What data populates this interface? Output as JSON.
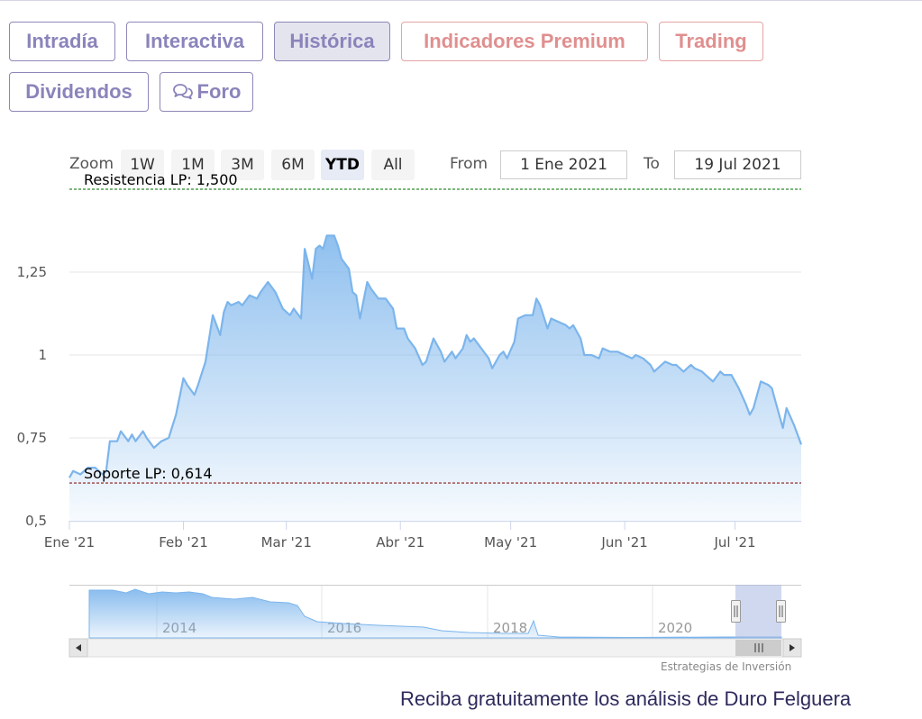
{
  "tabs": [
    {
      "label": "Intradía",
      "active": false,
      "premium": false
    },
    {
      "label": "Interactiva",
      "active": false,
      "premium": false
    },
    {
      "label": "Histórica",
      "active": true,
      "premium": false
    },
    {
      "label": "Indicadores Premium",
      "active": false,
      "premium": true
    },
    {
      "label": "Trading",
      "active": false,
      "premium": true
    },
    {
      "label": "Dividendos",
      "active": false,
      "premium": false
    },
    {
      "label": "Foro",
      "active": false,
      "premium": false,
      "icon": "chat-bubbles-icon"
    }
  ],
  "range_selector": {
    "zoom_label": "Zoom",
    "buttons": [
      "1W",
      "1M",
      "3M",
      "6M",
      "YTD",
      "All"
    ],
    "selected": "YTD",
    "from_label": "From",
    "from_value": "1 Ene 2021",
    "to_label": "To",
    "to_value": "19 Jul 2021"
  },
  "chart_data": {
    "type": "area",
    "y_axis": {
      "ticks": [
        0.5,
        0.75,
        1,
        1.25
      ],
      "tick_labels": [
        "0,5",
        "0,75",
        "1",
        "1,25"
      ],
      "range": [
        0.5,
        1.5
      ]
    },
    "x_axis": {
      "range": [
        "2021-01-01",
        "2021-07-19"
      ],
      "ticks": [
        "2021-01-01",
        "2021-02-01",
        "2021-03-01",
        "2021-04-01",
        "2021-05-01",
        "2021-06-01",
        "2021-07-01"
      ],
      "tick_labels": [
        "Ene '21",
        "Feb '21",
        "Mar '21",
        "Abr '21",
        "May '21",
        "Jun '21",
        "Jul '21"
      ]
    },
    "plot_lines": [
      {
        "label": "Resistencia LP: 1,500",
        "value": 1.5,
        "color": "#2e8b2e"
      },
      {
        "label": "Soporte LP: 0,614",
        "value": 0.614,
        "color": "#8b1a1a"
      }
    ],
    "series": [
      {
        "color": "#7cb5ec",
        "data": [
          [
            "2021-01-01",
            0.63
          ],
          [
            "2021-01-02",
            0.65
          ],
          [
            "2021-01-04",
            0.64
          ],
          [
            "2021-01-05",
            0.65
          ],
          [
            "2021-01-06",
            0.66
          ],
          [
            "2021-01-07",
            0.66
          ],
          [
            "2021-01-08",
            0.66
          ],
          [
            "2021-01-10",
            0.64
          ],
          [
            "2021-01-11",
            0.65
          ],
          [
            "2021-01-12",
            0.74
          ],
          [
            "2021-01-14",
            0.74
          ],
          [
            "2021-01-15",
            0.77
          ],
          [
            "2021-01-17",
            0.74
          ],
          [
            "2021-01-18",
            0.76
          ],
          [
            "2021-01-19",
            0.74
          ],
          [
            "2021-01-21",
            0.77
          ],
          [
            "2021-01-22",
            0.75
          ],
          [
            "2021-01-24",
            0.72
          ],
          [
            "2021-01-26",
            0.74
          ],
          [
            "2021-01-28",
            0.75
          ],
          [
            "2021-01-30",
            0.82
          ],
          [
            "2021-02-01",
            0.93
          ],
          [
            "2021-02-02",
            0.91
          ],
          [
            "2021-02-04",
            0.88
          ],
          [
            "2021-02-05",
            0.91
          ],
          [
            "2021-02-07",
            0.98
          ],
          [
            "2021-02-09",
            1.12
          ],
          [
            "2021-02-10",
            1.09
          ],
          [
            "2021-02-11",
            1.06
          ],
          [
            "2021-02-12",
            1.13
          ],
          [
            "2021-02-13",
            1.16
          ],
          [
            "2021-02-14",
            1.15
          ],
          [
            "2021-02-16",
            1.16
          ],
          [
            "2021-02-17",
            1.15
          ],
          [
            "2021-02-19",
            1.18
          ],
          [
            "2021-02-21",
            1.17
          ],
          [
            "2021-02-22",
            1.19
          ],
          [
            "2021-02-24",
            1.22
          ],
          [
            "2021-02-26",
            1.19
          ],
          [
            "2021-02-28",
            1.14
          ],
          [
            "2021-03-01",
            1.13
          ],
          [
            "2021-03-02",
            1.12
          ],
          [
            "2021-03-03",
            1.14
          ],
          [
            "2021-03-05",
            1.11
          ],
          [
            "2021-03-06",
            1.32
          ],
          [
            "2021-03-08",
            1.23
          ],
          [
            "2021-03-09",
            1.32
          ],
          [
            "2021-03-10",
            1.33
          ],
          [
            "2021-03-11",
            1.32
          ],
          [
            "2021-03-12",
            1.36
          ],
          [
            "2021-03-14",
            1.36
          ],
          [
            "2021-03-15",
            1.33
          ],
          [
            "2021-03-16",
            1.29
          ],
          [
            "2021-03-18",
            1.26
          ],
          [
            "2021-03-19",
            1.19
          ],
          [
            "2021-03-20",
            1.18
          ],
          [
            "2021-03-21",
            1.11
          ],
          [
            "2021-03-23",
            1.22
          ],
          [
            "2021-03-24",
            1.2
          ],
          [
            "2021-03-26",
            1.17
          ],
          [
            "2021-03-28",
            1.17
          ],
          [
            "2021-03-30",
            1.14
          ],
          [
            "2021-03-31",
            1.08
          ],
          [
            "2021-04-02",
            1.08
          ],
          [
            "2021-04-03",
            1.05
          ],
          [
            "2021-04-05",
            1.02
          ],
          [
            "2021-04-07",
            0.97
          ],
          [
            "2021-04-08",
            0.98
          ],
          [
            "2021-04-10",
            1.05
          ],
          [
            "2021-04-12",
            1.01
          ],
          [
            "2021-04-13",
            0.98
          ],
          [
            "2021-04-15",
            1.01
          ],
          [
            "2021-04-16",
            0.99
          ],
          [
            "2021-04-18",
            1.02
          ],
          [
            "2021-04-19",
            1.06
          ],
          [
            "2021-04-20",
            1.04
          ],
          [
            "2021-04-21",
            1.05
          ],
          [
            "2021-04-23",
            1.02
          ],
          [
            "2021-04-25",
            0.99
          ],
          [
            "2021-04-26",
            0.96
          ],
          [
            "2021-04-28",
            1
          ],
          [
            "2021-04-29",
            1.01
          ],
          [
            "2021-04-30",
            0.99
          ],
          [
            "2021-05-02",
            1.04
          ],
          [
            "2021-05-03",
            1.11
          ],
          [
            "2021-05-05",
            1.12
          ],
          [
            "2021-05-07",
            1.12
          ],
          [
            "2021-05-08",
            1.17
          ],
          [
            "2021-05-09",
            1.15
          ],
          [
            "2021-05-11",
            1.08
          ],
          [
            "2021-05-12",
            1.11
          ],
          [
            "2021-05-14",
            1.1
          ],
          [
            "2021-05-16",
            1.09
          ],
          [
            "2021-05-17",
            1.08
          ],
          [
            "2021-05-18",
            1.09
          ],
          [
            "2021-05-20",
            1.05
          ],
          [
            "2021-05-21",
            1
          ],
          [
            "2021-05-23",
            1
          ],
          [
            "2021-05-25",
            0.99
          ],
          [
            "2021-05-26",
            1.02
          ],
          [
            "2021-05-28",
            1.01
          ],
          [
            "2021-05-30",
            1.01
          ],
          [
            "2021-06-01",
            1
          ],
          [
            "2021-06-03",
            0.99
          ],
          [
            "2021-06-04",
            1
          ],
          [
            "2021-06-06",
            0.99
          ],
          [
            "2021-06-08",
            0.97
          ],
          [
            "2021-06-09",
            0.95
          ],
          [
            "2021-06-11",
            0.97
          ],
          [
            "2021-06-12",
            0.98
          ],
          [
            "2021-06-14",
            0.97
          ],
          [
            "2021-06-15",
            0.97
          ],
          [
            "2021-06-17",
            0.95
          ],
          [
            "2021-06-19",
            0.97
          ],
          [
            "2021-06-20",
            0.96
          ],
          [
            "2021-06-22",
            0.95
          ],
          [
            "2021-06-24",
            0.93
          ],
          [
            "2021-06-25",
            0.92
          ],
          [
            "2021-06-27",
            0.95
          ],
          [
            "2021-06-28",
            0.94
          ],
          [
            "2021-06-30",
            0.94
          ],
          [
            "2021-07-02",
            0.9
          ],
          [
            "2021-07-04",
            0.85
          ],
          [
            "2021-07-05",
            0.82
          ],
          [
            "2021-07-06",
            0.84
          ],
          [
            "2021-07-08",
            0.92
          ],
          [
            "2021-07-10",
            0.91
          ],
          [
            "2021-07-11",
            0.9
          ],
          [
            "2021-07-12",
            0.86
          ],
          [
            "2021-07-14",
            0.78
          ],
          [
            "2021-07-15",
            0.84
          ],
          [
            "2021-07-17",
            0.79
          ],
          [
            "2021-07-18",
            0.76
          ],
          [
            "2021-07-19",
            0.73
          ]
        ]
      }
    ]
  },
  "navigator": {
    "labels": [
      "2014",
      "2016",
      "2018",
      "2020"
    ],
    "window": {
      "from": "2021-01-01",
      "to": "2021-07-19"
    }
  },
  "credits": "Estrategias de Inversión",
  "cta": "Reciba gratuitamente los análisis de Duro Felguera"
}
